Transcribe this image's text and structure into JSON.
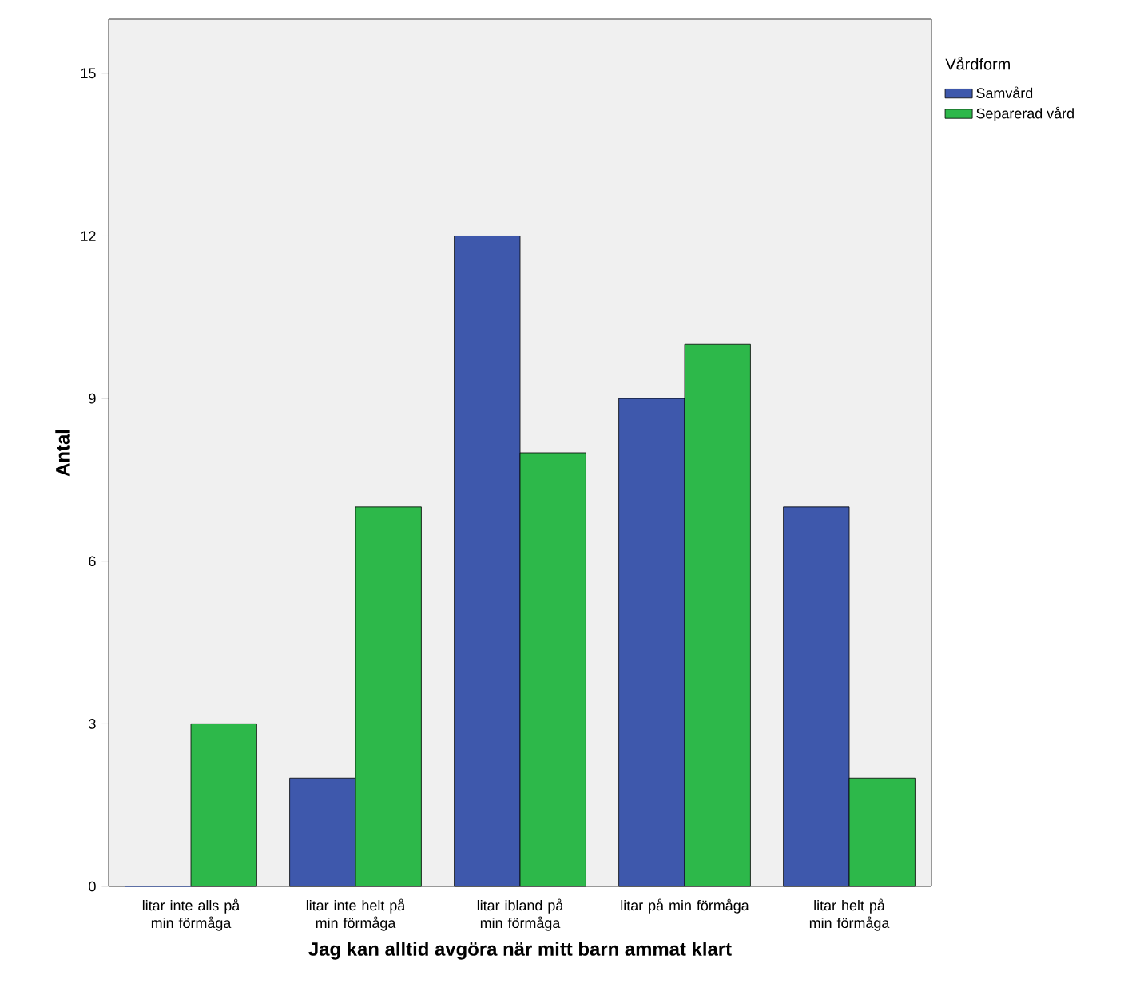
{
  "chart_data": {
    "type": "bar",
    "xlabel": "Jag kan alltid avgöra när mitt barn ammat klart",
    "ylabel": "Antal",
    "legend_title": "Vårdform",
    "categories": [
      "litar inte alls på min förmåga",
      "litar inte helt på min förmåga",
      "litar ibland på min förmåga",
      "litar på min förmåga",
      "litar helt på min förmåga"
    ],
    "series": [
      {
        "name": "Samvård",
        "color": "#3e58ac",
        "values": [
          0,
          2,
          12,
          9,
          7
        ]
      },
      {
        "name": "Separerad vård",
        "color": "#2db84a",
        "values": [
          3,
          7,
          8,
          10,
          2
        ]
      }
    ],
    "ylim": [
      0,
      16
    ],
    "yticks": [
      0,
      3,
      6,
      9,
      12,
      15
    ],
    "grid": false,
    "legend": "top right"
  }
}
